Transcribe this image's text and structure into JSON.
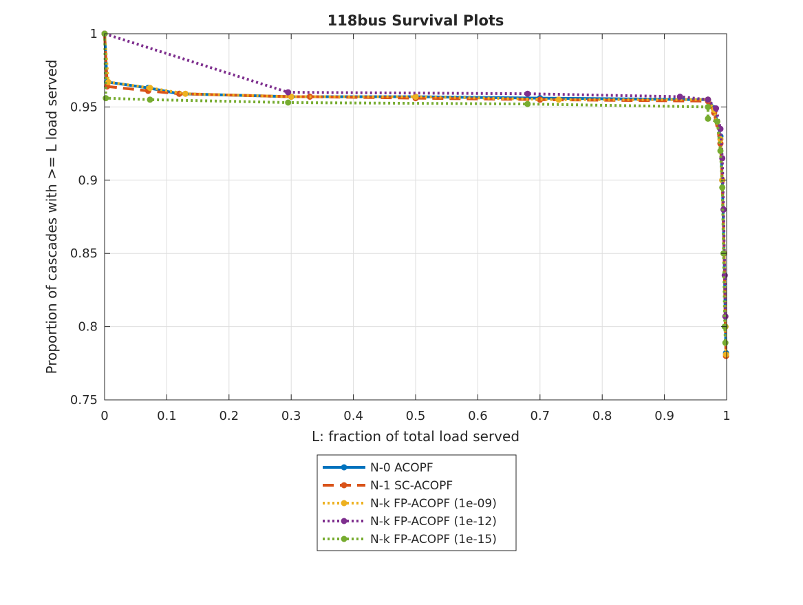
{
  "chart_data": {
    "type": "line",
    "title": "118bus Survival Plots",
    "xlabel": "L: fraction of total load served",
    "ylabel": "Proportion of cascades with >= L load served",
    "xlim": [
      0,
      1
    ],
    "ylim": [
      0.75,
      1
    ],
    "xticks": [
      "0",
      "0.1",
      "0.2",
      "0.3",
      "0.4",
      "0.5",
      "0.6",
      "0.7",
      "0.8",
      "0.9",
      "1"
    ],
    "yticks": [
      "0.75",
      "0.8",
      "0.85",
      "0.9",
      "0.95",
      "1"
    ],
    "grid": true,
    "legend_position": "below plot",
    "series": [
      {
        "name": "N-0 ACOPF",
        "color": "#0072BD",
        "line_style": "solid",
        "points": [
          [
            0,
            1
          ],
          [
            0.004,
            0.967
          ],
          [
            0.07,
            0.963
          ],
          [
            0.12,
            0.959
          ],
          [
            0.3,
            0.957
          ],
          [
            0.5,
            0.957
          ],
          [
            0.7,
            0.956
          ],
          [
            0.97,
            0.955
          ],
          [
            0.98,
            0.949
          ],
          [
            0.99,
            0.93
          ],
          [
            0.993,
            0.9
          ],
          [
            0.996,
            0.85
          ],
          [
            0.998,
            0.8
          ],
          [
            0.999,
            0.782
          ]
        ]
      },
      {
        "name": "N-1 SC-ACOPF",
        "color": "#D95319",
        "line_style": "dashed",
        "points": [
          [
            0,
            1
          ],
          [
            0.004,
            0.964
          ],
          [
            0.07,
            0.961
          ],
          [
            0.12,
            0.959
          ],
          [
            0.3,
            0.957
          ],
          [
            0.33,
            0.957
          ],
          [
            0.5,
            0.956
          ],
          [
            0.7,
            0.955
          ],
          [
            0.97,
            0.954
          ],
          [
            0.98,
            0.946
          ],
          [
            0.99,
            0.925
          ],
          [
            0.993,
            0.9
          ],
          [
            0.996,
            0.85
          ],
          [
            0.998,
            0.8
          ],
          [
            0.999,
            0.78
          ]
        ]
      },
      {
        "name": "N-k FP-ACOPF (1e-09)",
        "color": "#EDB120",
        "line_style": "dotted",
        "points": [
          [
            0,
            1
          ],
          [
            0.006,
            0.967
          ],
          [
            0.073,
            0.963
          ],
          [
            0.13,
            0.959
          ],
          [
            0.3,
            0.957
          ],
          [
            0.5,
            0.957
          ],
          [
            0.73,
            0.955
          ],
          [
            0.97,
            0.955
          ],
          [
            0.98,
            0.948
          ],
          [
            0.99,
            0.928
          ],
          [
            0.993,
            0.9
          ],
          [
            0.996,
            0.85
          ],
          [
            0.998,
            0.8
          ],
          [
            0.999,
            0.781
          ]
        ]
      },
      {
        "name": "N-k FP-ACOPF (1e-12)",
        "color": "#7E2F8E",
        "line_style": "dotted",
        "points": [
          [
            0,
            1
          ],
          [
            0.295,
            0.96
          ],
          [
            0.68,
            0.959
          ],
          [
            0.925,
            0.957
          ],
          [
            0.97,
            0.955
          ],
          [
            0.983,
            0.949
          ],
          [
            0.99,
            0.935
          ],
          [
            0.993,
            0.915
          ],
          [
            0.995,
            0.88
          ],
          [
            0.997,
            0.835
          ],
          [
            0.998,
            0.807
          ]
        ]
      },
      {
        "name": "N-k FP-ACOPF (1e-15)",
        "color": "#77AC30",
        "line_style": "dotted",
        "points": [
          [
            0,
            1
          ],
          [
            0.002,
            0.956
          ],
          [
            0.073,
            0.955
          ],
          [
            0.295,
            0.953
          ],
          [
            0.68,
            0.952
          ],
          [
            0.97,
            0.95
          ],
          [
            0.97,
            0.942
          ],
          [
            0.985,
            0.94
          ],
          [
            0.99,
            0.92
          ],
          [
            0.993,
            0.895
          ],
          [
            0.995,
            0.85
          ],
          [
            0.997,
            0.8
          ],
          [
            0.998,
            0.789
          ]
        ]
      }
    ]
  }
}
